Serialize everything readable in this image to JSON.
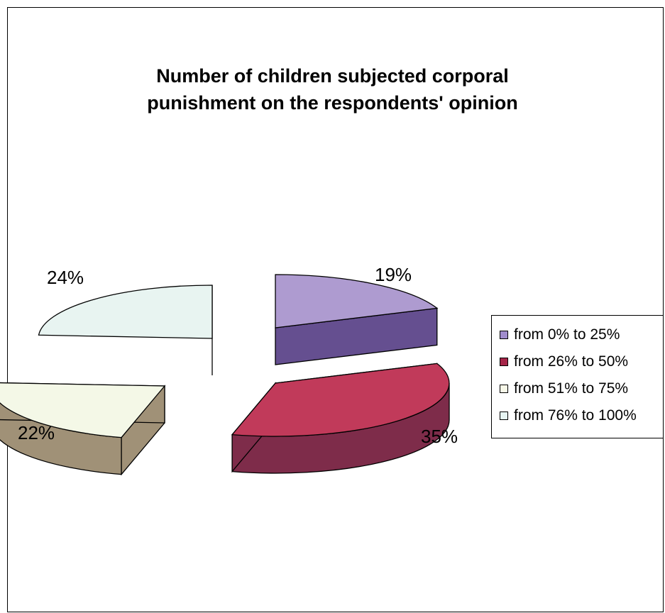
{
  "chart_data": {
    "type": "pie",
    "title_line1": "Number of children subjected corporal",
    "title_line2": "punishment on the respondents' opinion",
    "categories": [
      "from 0% to 25%",
      "from 26% to 50%",
      "from 51% to 75%",
      "from 76% to 100%"
    ],
    "values": [
      19,
      35,
      22,
      24
    ],
    "labels": [
      "19%",
      "35%",
      "22%",
      "24%"
    ],
    "colors": {
      "top": [
        "#ae9bd0",
        "#c13a5a",
        "#f4f8e7",
        "#e8f4f1"
      ],
      "side": [
        "#654f90",
        "#7e2c4a",
        "#a09177",
        "#85937f"
      ],
      "legend": [
        "#a08ccc",
        "#a52448",
        "#f7f8e8",
        "#e6f4f2"
      ]
    },
    "legend_position": "right"
  }
}
